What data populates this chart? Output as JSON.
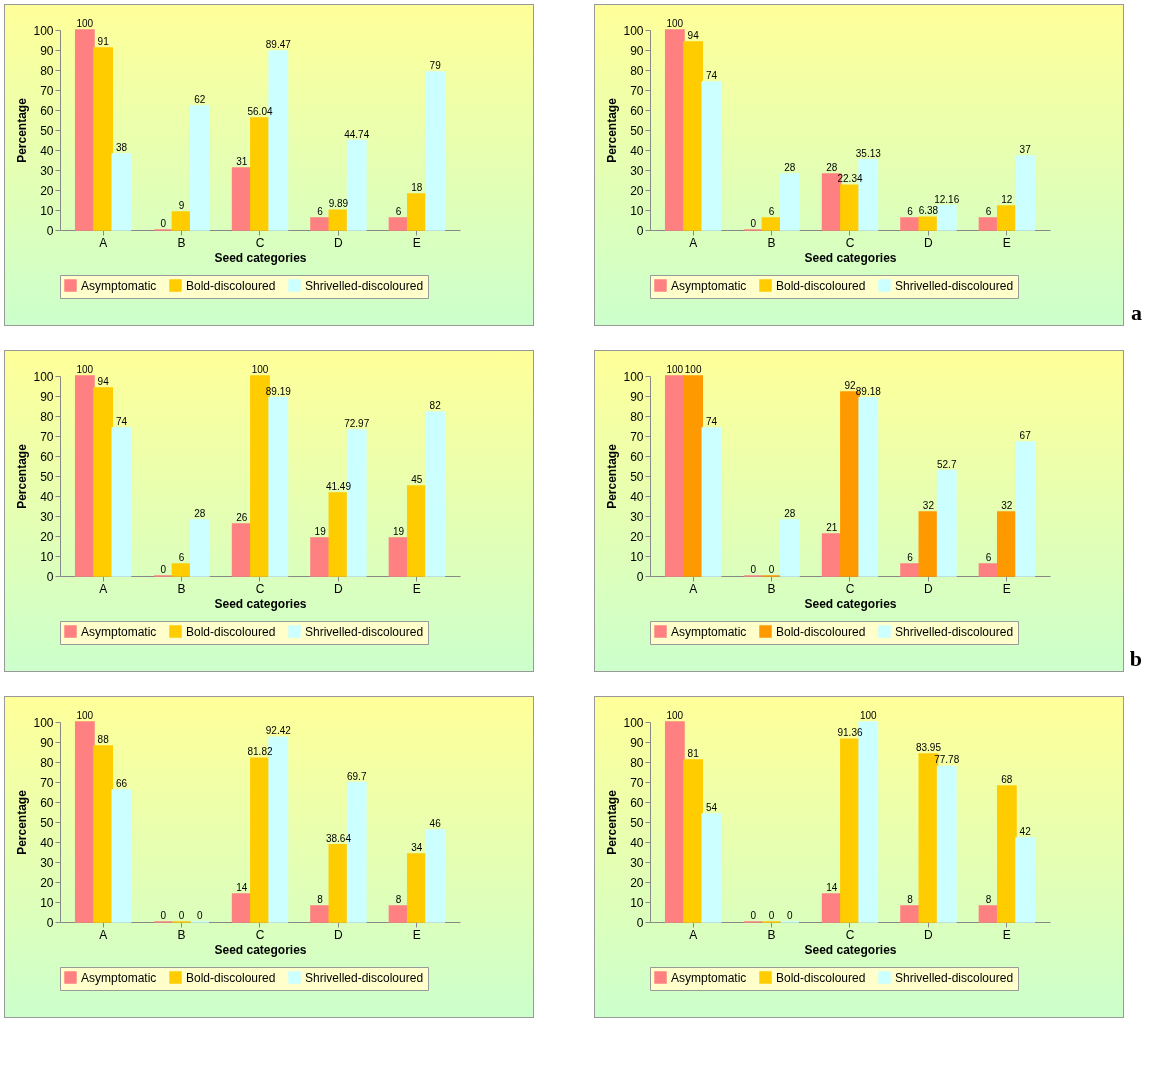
{
  "chart_data": [
    {
      "type": "bar",
      "xlabel": "Seed categories",
      "ylabel": "Percentage",
      "categories": [
        "A",
        "B",
        "C",
        "D",
        "E"
      ],
      "ylim": [
        0,
        100
      ],
      "yticks": [
        0,
        10,
        20,
        30,
        40,
        50,
        60,
        70,
        80,
        90,
        100
      ],
      "grid": false,
      "legend": "bottom",
      "data_labels": true,
      "series": [
        {
          "name": "Asymptomatic",
          "color": "#ff8080",
          "values": [
            100,
            0,
            31,
            6,
            6
          ]
        },
        {
          "name": "Bold-discoloured",
          "color": "#ffcc00",
          "values": [
            91,
            9,
            56.04,
            9.89,
            18
          ]
        },
        {
          "name": "Shrivelled-discoloured",
          "color": "#ccffff",
          "values": [
            38,
            62,
            89.47,
            44.74,
            79
          ]
        }
      ]
    },
    {
      "type": "bar",
      "xlabel": "Seed categories",
      "ylabel": "Percentage",
      "categories": [
        "A",
        "B",
        "C",
        "D",
        "E"
      ],
      "ylim": [
        0,
        100
      ],
      "yticks": [
        0,
        10,
        20,
        30,
        40,
        50,
        60,
        70,
        80,
        90,
        100
      ],
      "grid": false,
      "legend": "bottom",
      "data_labels": true,
      "annotations": [
        "a"
      ],
      "series": [
        {
          "name": "Asymptomatic",
          "color": "#ff8080",
          "values": [
            100,
            0,
            28,
            6,
            6
          ]
        },
        {
          "name": "Bold-discoloured",
          "color": "#ffcc00",
          "values": [
            94,
            6,
            22.34,
            6.38,
            12
          ]
        },
        {
          "name": "Shrivelled-discoloured",
          "color": "#ccffff",
          "values": [
            74,
            28,
            35.13,
            12.16,
            37
          ]
        }
      ]
    },
    {
      "type": "bar",
      "xlabel": "Seed categories",
      "ylabel": "Percentage",
      "categories": [
        "A",
        "B",
        "C",
        "D",
        "E"
      ],
      "ylim": [
        0,
        100
      ],
      "yticks": [
        0,
        10,
        20,
        30,
        40,
        50,
        60,
        70,
        80,
        90,
        100
      ],
      "grid": false,
      "legend": "bottom",
      "data_labels": true,
      "series": [
        {
          "name": "Asymptomatic",
          "color": "#ff8080",
          "values": [
            100,
            0,
            26,
            19,
            19
          ]
        },
        {
          "name": "Bold-discoloured",
          "color": "#ffcc00",
          "values": [
            94,
            6,
            100,
            41.49,
            45
          ]
        },
        {
          "name": "Shrivelled-discoloured",
          "color": "#ccffff",
          "values": [
            74,
            28,
            89.19,
            72.97,
            82
          ]
        }
      ]
    },
    {
      "type": "bar",
      "xlabel": "Seed categories",
      "ylabel": "Percentage",
      "categories": [
        "A",
        "B",
        "C",
        "D",
        "E"
      ],
      "ylim": [
        0,
        100
      ],
      "yticks": [
        0,
        10,
        20,
        30,
        40,
        50,
        60,
        70,
        80,
        90,
        100
      ],
      "grid": false,
      "legend": "bottom",
      "data_labels": true,
      "annotations": [
        "b"
      ],
      "series": [
        {
          "name": "Asymptomatic",
          "color": "#ff8080",
          "values": [
            100,
            0,
            21,
            6,
            6
          ]
        },
        {
          "name": "Bold-discoloured",
          "color": "#ff9900",
          "values": [
            100,
            0,
            92,
            32,
            32
          ]
        },
        {
          "name": "Shrivelled-discoloured",
          "color": "#ccffff",
          "values": [
            74,
            28,
            89.18,
            52.7,
            67
          ]
        }
      ]
    },
    {
      "type": "bar",
      "xlabel": "Seed categories",
      "ylabel": "Percentage",
      "categories": [
        "A",
        "B",
        "C",
        "D",
        "E"
      ],
      "ylim": [
        0,
        100
      ],
      "yticks": [
        0,
        10,
        20,
        30,
        40,
        50,
        60,
        70,
        80,
        90,
        100
      ],
      "grid": false,
      "legend": "bottom",
      "data_labels": true,
      "series": [
        {
          "name": "Asymptomatic",
          "color": "#ff8080",
          "values": [
            100,
            0,
            14,
            8,
            8
          ]
        },
        {
          "name": "Bold-discoloured",
          "color": "#ffcc00",
          "values": [
            88,
            0,
            81.82,
            38.64,
            34
          ]
        },
        {
          "name": "Shrivelled-discoloured",
          "color": "#ccffff",
          "values": [
            66,
            0,
            92.42,
            69.7,
            46
          ]
        }
      ]
    },
    {
      "type": "bar",
      "xlabel": "Seed categories",
      "ylabel": "Percentage",
      "categories": [
        "A",
        "B",
        "C",
        "D",
        "E"
      ],
      "ylim": [
        0,
        100
      ],
      "yticks": [
        0,
        10,
        20,
        30,
        40,
        50,
        60,
        70,
        80,
        90,
        100
      ],
      "grid": false,
      "legend": "bottom",
      "data_labels": true,
      "series": [
        {
          "name": "Asymptomatic",
          "color": "#ff8080",
          "values": [
            100,
            0,
            14,
            8,
            8
          ]
        },
        {
          "name": "Bold-discoloured",
          "color": "#ffcc00",
          "values": [
            81,
            0,
            91.36,
            83.95,
            68
          ]
        },
        {
          "name": "Shrivelled-discoloured",
          "color": "#ccffff",
          "values": [
            54,
            0,
            100,
            77.78,
            42
          ]
        }
      ]
    }
  ]
}
